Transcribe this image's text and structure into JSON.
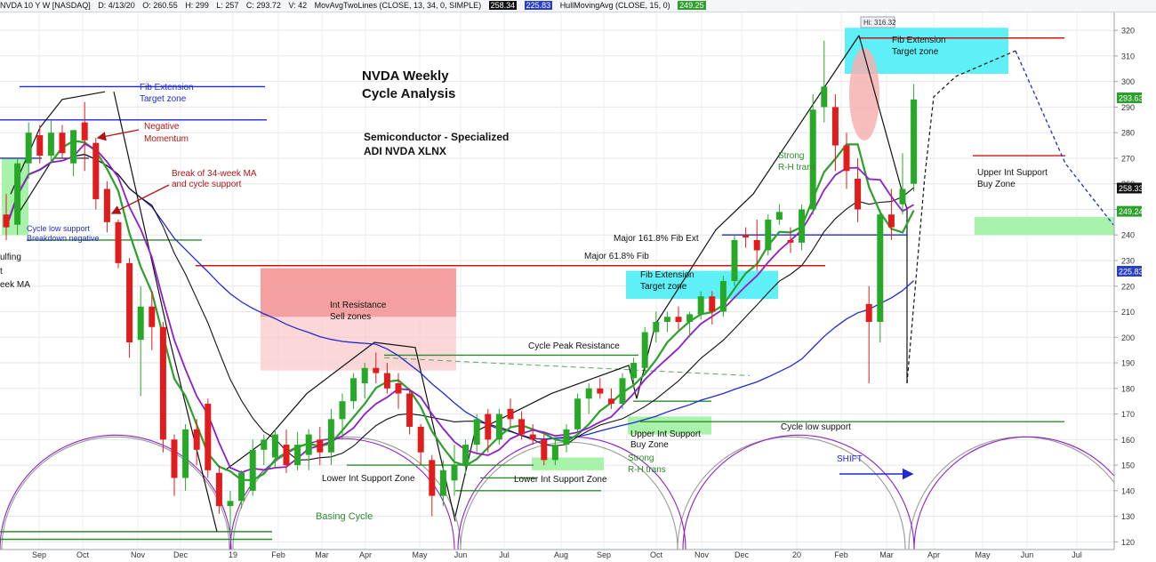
{
  "header": {
    "symbol": "NVDA 10 Y W [NASDAQ]",
    "date": "D: 4/13/20",
    "open": "O: 260.55",
    "high": "H: 299",
    "low": "L: 257",
    "close": "C: 293.72",
    "volume": "V: 42",
    "ma_label": "MovAvgTwoLines (CLOSE, 13, 34, 0, SIMPLE)",
    "ma_val1": "258.34",
    "ma_val2": "225.83",
    "hma_label": "HullMovingAvg (CLOSE, 15, 0)",
    "hma_val": "249.25"
  },
  "chart_data": {
    "type": "candlestick",
    "title": "NVDA  Weekly Cycle Analysis",
    "title_lines": [
      "NVDA  Weekly",
      "Cycle Analysis"
    ],
    "subtitle_lines": [
      "Semiconductor - Specialized",
      "ADI NVDA XLNX"
    ],
    "yaxis": {
      "side": "right",
      "min": 117,
      "max": 327,
      "ticks": [
        120,
        130,
        140,
        150,
        160,
        170,
        180,
        190,
        200,
        210,
        220,
        230,
        240,
        250,
        260,
        270,
        280,
        290,
        300,
        310,
        320
      ]
    },
    "xaxis": {
      "labels": [
        "Sep",
        "Oct",
        "Nov",
        "Dec",
        "19",
        "Feb",
        "Mar",
        "Apr",
        "May",
        "Jun",
        "Jul",
        "Aug",
        "Sep",
        "Oct",
        "Nov",
        "Dec",
        "20",
        "Feb",
        "Mar",
        "Apr",
        "May",
        "Jun",
        "Jul"
      ]
    },
    "price_labels": [
      {
        "value": 293.63,
        "text": "293.63",
        "color": "#2ca02c"
      },
      {
        "value": 258.33,
        "text": "258.33",
        "color": "#111111"
      },
      {
        "value": 249.24,
        "text": "249.24",
        "color": "#2ca02c"
      },
      {
        "value": 225.83,
        "text": "225.83",
        "color": "#2a3fc8"
      }
    ],
    "high_marker": "Hi: 316.32",
    "candles": [
      {
        "o": 248,
        "h": 256,
        "l": 238,
        "c": 243
      },
      {
        "o": 244,
        "h": 270,
        "l": 240,
        "c": 268
      },
      {
        "o": 268,
        "h": 284,
        "l": 262,
        "c": 280
      },
      {
        "o": 279,
        "h": 283,
        "l": 268,
        "c": 271
      },
      {
        "o": 271,
        "h": 285,
        "l": 268,
        "c": 280
      },
      {
        "o": 280,
        "h": 283,
        "l": 270,
        "c": 272
      },
      {
        "o": 268,
        "h": 281,
        "l": 263,
        "c": 281
      },
      {
        "o": 284,
        "h": 292,
        "l": 265,
        "c": 277
      },
      {
        "o": 276,
        "h": 278,
        "l": 250,
        "c": 254
      },
      {
        "o": 258,
        "h": 261,
        "l": 241,
        "c": 245
      },
      {
        "o": 245,
        "h": 246,
        "l": 227,
        "c": 229
      },
      {
        "o": 229,
        "h": 231,
        "l": 192,
        "c": 198
      },
      {
        "o": 199,
        "h": 220,
        "l": 177,
        "c": 212
      },
      {
        "o": 212,
        "h": 218,
        "l": 195,
        "c": 204
      },
      {
        "o": 204,
        "h": 206,
        "l": 155,
        "c": 160
      },
      {
        "o": 160,
        "h": 162,
        "l": 138,
        "c": 145
      },
      {
        "o": 145,
        "h": 166,
        "l": 140,
        "c": 164
      },
      {
        "o": 164,
        "h": 168,
        "l": 150,
        "c": 156
      },
      {
        "o": 174,
        "h": 176,
        "l": 145,
        "c": 148
      },
      {
        "o": 147,
        "h": 150,
        "l": 131,
        "c": 134
      },
      {
        "o": 134,
        "h": 140,
        "l": 124,
        "c": 136
      },
      {
        "o": 136,
        "h": 148,
        "l": 133,
        "c": 147
      },
      {
        "o": 140,
        "h": 160,
        "l": 138,
        "c": 156
      },
      {
        "o": 156,
        "h": 162,
        "l": 150,
        "c": 160
      },
      {
        "o": 153,
        "h": 164,
        "l": 149,
        "c": 162
      },
      {
        "o": 158,
        "h": 164,
        "l": 147,
        "c": 150
      },
      {
        "o": 150,
        "h": 163,
        "l": 148,
        "c": 158
      },
      {
        "o": 154,
        "h": 164,
        "l": 148,
        "c": 162
      },
      {
        "o": 160,
        "h": 165,
        "l": 150,
        "c": 155
      },
      {
        "o": 155,
        "h": 172,
        "l": 150,
        "c": 168
      },
      {
        "o": 168,
        "h": 178,
        "l": 160,
        "c": 175
      },
      {
        "o": 175,
        "h": 186,
        "l": 172,
        "c": 184
      },
      {
        "o": 182,
        "h": 190,
        "l": 176,
        "c": 188
      },
      {
        "o": 188,
        "h": 194,
        "l": 182,
        "c": 186
      },
      {
        "o": 186,
        "h": 190,
        "l": 178,
        "c": 180
      },
      {
        "o": 182,
        "h": 186,
        "l": 172,
        "c": 178
      },
      {
        "o": 178,
        "h": 180,
        "l": 162,
        "c": 165
      },
      {
        "o": 165,
        "h": 166,
        "l": 150,
        "c": 155
      },
      {
        "o": 152,
        "h": 154,
        "l": 130,
        "c": 138
      },
      {
        "o": 138,
        "h": 152,
        "l": 134,
        "c": 148
      },
      {
        "o": 144,
        "h": 158,
        "l": 138,
        "c": 150
      },
      {
        "o": 150,
        "h": 160,
        "l": 146,
        "c": 158
      },
      {
        "o": 158,
        "h": 170,
        "l": 155,
        "c": 168
      },
      {
        "o": 170,
        "h": 172,
        "l": 155,
        "c": 160
      },
      {
        "o": 160,
        "h": 172,
        "l": 158,
        "c": 170
      },
      {
        "o": 172,
        "h": 176,
        "l": 165,
        "c": 168
      },
      {
        "o": 168,
        "h": 171,
        "l": 160,
        "c": 162
      },
      {
        "o": 162,
        "h": 166,
        "l": 158,
        "c": 160
      },
      {
        "o": 160,
        "h": 162,
        "l": 150,
        "c": 152
      },
      {
        "o": 152,
        "h": 160,
        "l": 150,
        "c": 158
      },
      {
        "o": 158,
        "h": 166,
        "l": 155,
        "c": 164
      },
      {
        "o": 164,
        "h": 178,
        "l": 162,
        "c": 176
      },
      {
        "o": 176,
        "h": 182,
        "l": 170,
        "c": 180
      },
      {
        "o": 180,
        "h": 184,
        "l": 176,
        "c": 178
      },
      {
        "o": 176,
        "h": 180,
        "l": 172,
        "c": 174
      },
      {
        "o": 174,
        "h": 186,
        "l": 172,
        "c": 184
      },
      {
        "o": 184,
        "h": 192,
        "l": 180,
        "c": 190
      },
      {
        "o": 188,
        "h": 204,
        "l": 186,
        "c": 202
      },
      {
        "o": 202,
        "h": 210,
        "l": 198,
        "c": 206
      },
      {
        "o": 206,
        "h": 210,
        "l": 202,
        "c": 208
      },
      {
        "o": 208,
        "h": 212,
        "l": 203,
        "c": 206
      },
      {
        "o": 206,
        "h": 210,
        "l": 200,
        "c": 209
      },
      {
        "o": 209,
        "h": 218,
        "l": 207,
        "c": 216
      },
      {
        "o": 216,
        "h": 218,
        "l": 205,
        "c": 210
      },
      {
        "o": 210,
        "h": 224,
        "l": 208,
        "c": 222
      },
      {
        "o": 222,
        "h": 240,
        "l": 220,
        "c": 238
      },
      {
        "o": 240,
        "h": 243,
        "l": 235,
        "c": 239
      },
      {
        "o": 238,
        "h": 246,
        "l": 226,
        "c": 234
      },
      {
        "o": 234,
        "h": 248,
        "l": 232,
        "c": 246
      },
      {
        "o": 246,
        "h": 252,
        "l": 244,
        "c": 249
      },
      {
        "o": 238,
        "h": 243,
        "l": 233,
        "c": 237
      },
      {
        "o": 237,
        "h": 252,
        "l": 234,
        "c": 250
      },
      {
        "o": 250,
        "h": 295,
        "l": 248,
        "c": 289
      },
      {
        "o": 290,
        "h": 316,
        "l": 284,
        "c": 298
      },
      {
        "o": 290,
        "h": 295,
        "l": 265,
        "c": 275
      },
      {
        "o": 275,
        "h": 280,
        "l": 258,
        "c": 265
      },
      {
        "o": 262,
        "h": 270,
        "l": 245,
        "c": 250
      },
      {
        "o": 213,
        "h": 220,
        "l": 182,
        "c": 206
      },
      {
        "o": 206,
        "h": 250,
        "l": 198,
        "c": 248
      },
      {
        "o": 248,
        "h": 258,
        "l": 238,
        "c": 243
      },
      {
        "o": 252,
        "h": 272,
        "l": 248,
        "c": 258
      },
      {
        "o": 260,
        "h": 299,
        "l": 257,
        "c": 293
      }
    ],
    "annotations": [
      "Fib Extension",
      "Target zone",
      "Negative",
      "Momentum",
      "Break of 34-week MA",
      "and cycle support",
      "Cycle low support",
      "Breakdown negative",
      "ulfing",
      "t",
      "eek MA",
      "Int Resistance",
      "Sell zones",
      "Cycle Peak Resistance",
      "Major 161.8% Fib Ext",
      "Major 61.8% Fib",
      "Fib Extension",
      "Target zone",
      "Strong",
      "R-H trans",
      "Fib Extension",
      "Target zone",
      "Upper Int Support",
      "Buy Zone",
      "Cycle low support",
      "Upper Int Support",
      "Buy Zone",
      "Strong",
      "R-H trans",
      "SHIFT",
      "Lower Int Support Zone",
      "Lower Int Support Zone",
      "Basing Cycle"
    ]
  }
}
